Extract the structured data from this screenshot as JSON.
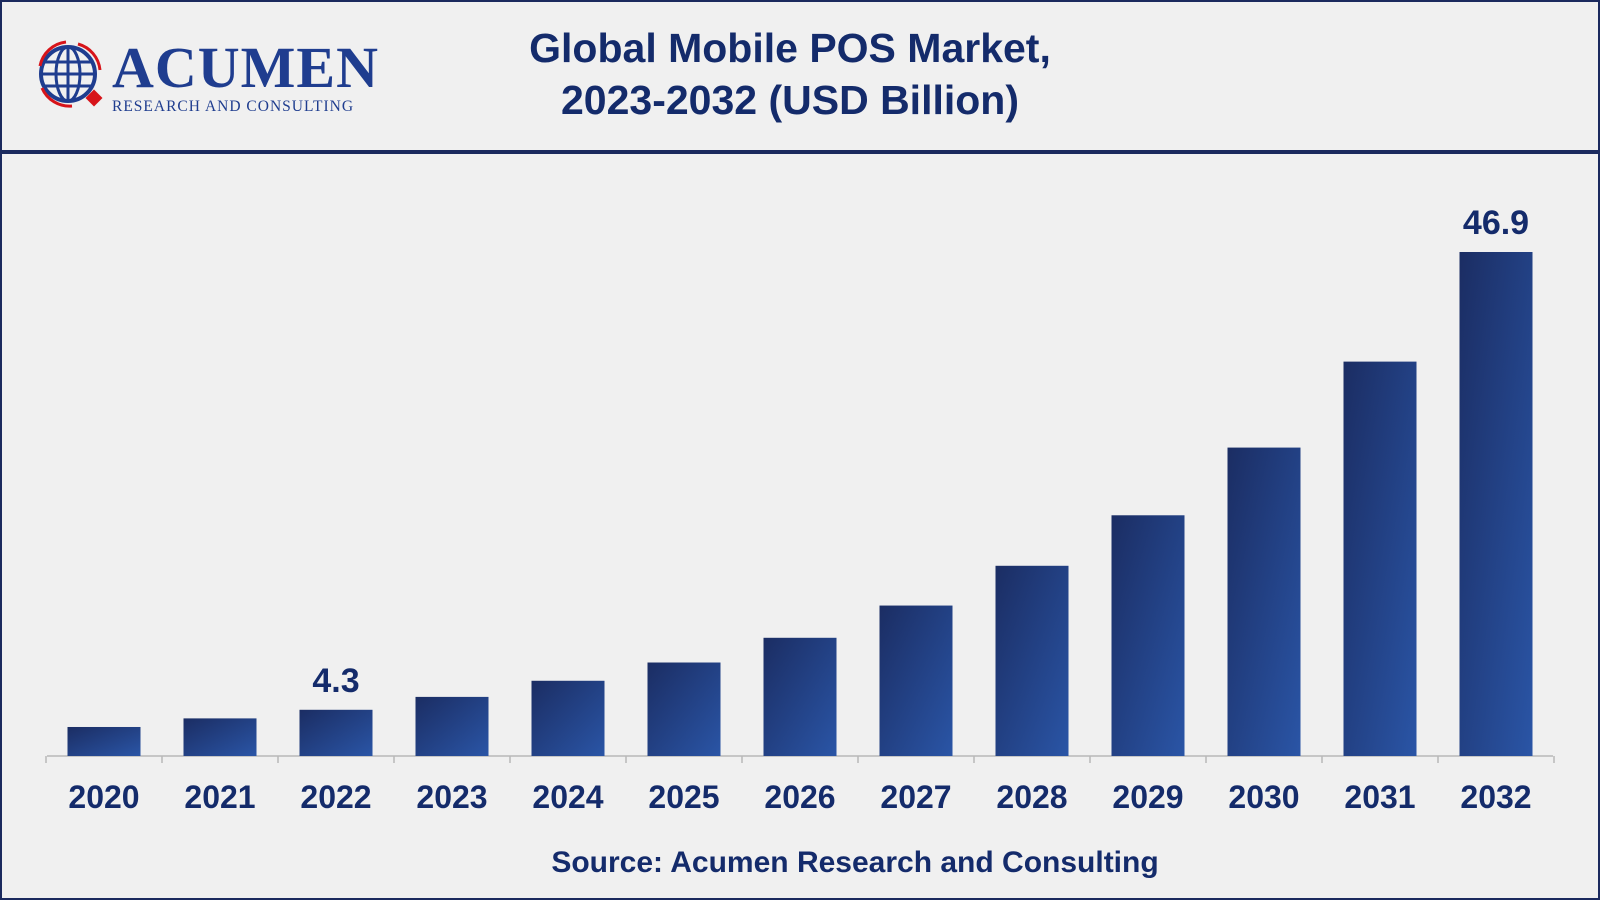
{
  "logo": {
    "name": "ACUMEN",
    "tagline": "RESEARCH AND CONSULTING"
  },
  "header": {
    "title_line1": "Global Mobile POS Market,",
    "title_line2": "2023-2032 (USD Billion)"
  },
  "source": "Source: Acumen Research and Consulting",
  "colors": {
    "bar_dark": "#1b2d63",
    "bar_light": "#2a55a6",
    "text": "#142b6b",
    "accent_red": "#d7141a"
  },
  "chart_data": {
    "type": "bar",
    "title": "Global Mobile POS Market, 2023-2032 (USD Billion)",
    "categories": [
      "2020",
      "2021",
      "2022",
      "2023",
      "2024",
      "2025",
      "2026",
      "2027",
      "2028",
      "2029",
      "2030",
      "2031",
      "2032"
    ],
    "values": [
      2.7,
      3.5,
      4.3,
      5.5,
      7.0,
      8.7,
      11.0,
      14.0,
      17.7,
      22.4,
      28.7,
      36.7,
      46.9
    ],
    "data_labels": {
      "2022": "4.3",
      "2032": "46.9"
    },
    "xlabel": "",
    "ylabel": "",
    "ylim": [
      0,
      46.9
    ],
    "grid": false,
    "legend": "none"
  }
}
